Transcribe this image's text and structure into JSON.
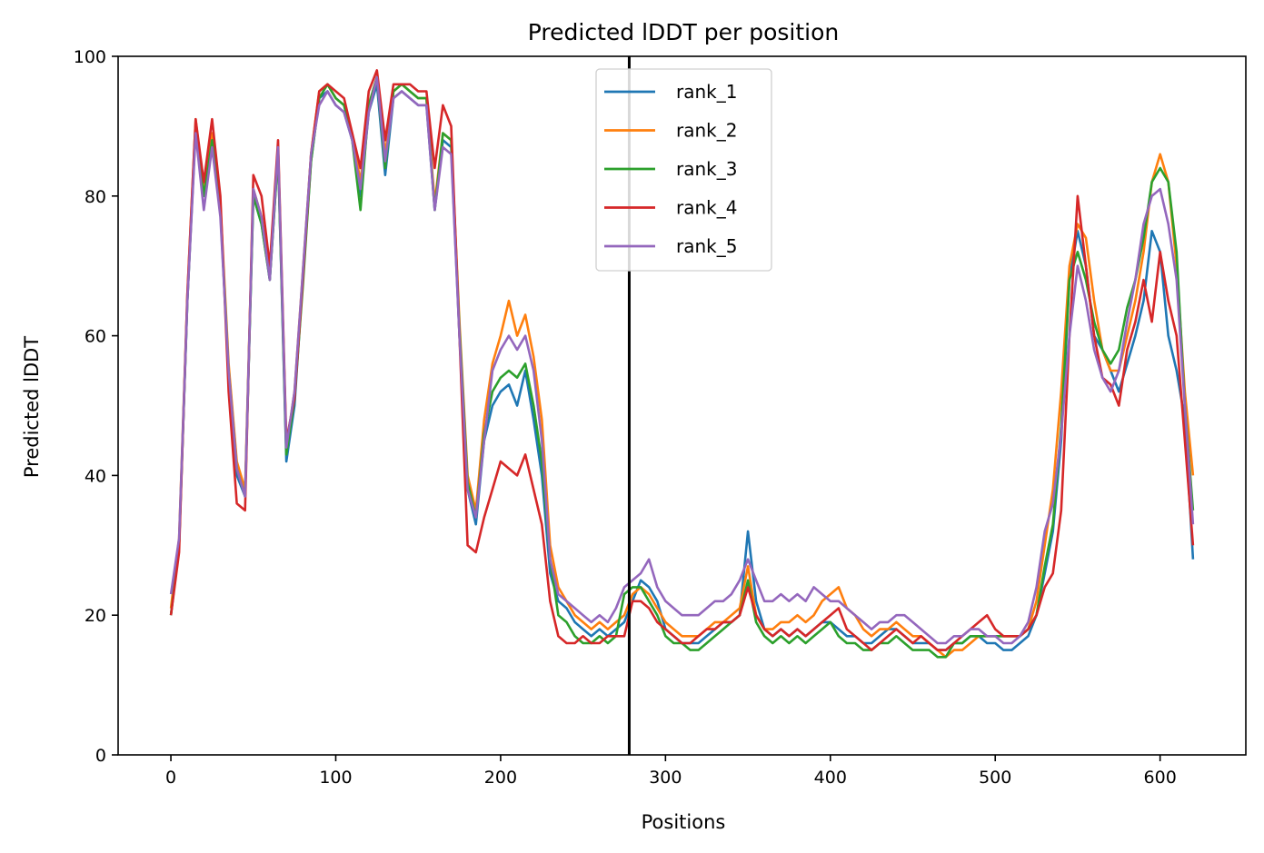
{
  "chart_data": {
    "type": "line",
    "title": "Predicted lDDT per position",
    "xlabel": "Positions",
    "ylabel": "Predicted lDDT",
    "xlim": [
      -32,
      652
    ],
    "ylim": [
      0,
      100
    ],
    "xticks": [
      0,
      100,
      200,
      300,
      400,
      500,
      600
    ],
    "yticks": [
      0,
      20,
      40,
      60,
      80,
      100
    ],
    "grid": false,
    "legend_position": "top-center",
    "vline_x": 278,
    "vline_color": "#000000",
    "series": [
      {
        "name": "rank_1",
        "color": "#1f77b4",
        "x": [
          0,
          5,
          10,
          15,
          20,
          25,
          30,
          35,
          40,
          45,
          50,
          55,
          60,
          65,
          70,
          75,
          80,
          85,
          90,
          95,
          100,
          105,
          110,
          115,
          120,
          125,
          130,
          135,
          140,
          145,
          150,
          155,
          160,
          165,
          170,
          175,
          180,
          185,
          190,
          195,
          200,
          205,
          210,
          215,
          220,
          225,
          230,
          235,
          240,
          245,
          250,
          255,
          260,
          265,
          270,
          275,
          280,
          285,
          290,
          295,
          300,
          305,
          310,
          315,
          320,
          325,
          330,
          335,
          340,
          345,
          350,
          355,
          360,
          365,
          370,
          375,
          380,
          385,
          390,
          395,
          400,
          405,
          410,
          415,
          420,
          425,
          430,
          435,
          440,
          445,
          450,
          455,
          460,
          465,
          470,
          475,
          480,
          485,
          490,
          495,
          500,
          505,
          510,
          515,
          520,
          525,
          530,
          535,
          540,
          545,
          550,
          555,
          560,
          565,
          570,
          575,
          580,
          585,
          590,
          595,
          600,
          605,
          610,
          615,
          620
        ],
        "y": [
          20,
          30,
          65,
          90,
          80,
          88,
          78,
          55,
          40,
          37,
          80,
          76,
          68,
          86,
          42,
          50,
          68,
          85,
          94,
          95,
          93,
          92,
          88,
          80,
          92,
          96,
          83,
          94,
          95,
          94,
          93,
          93,
          78,
          88,
          87,
          60,
          38,
          33,
          45,
          50,
          52,
          53,
          50,
          55,
          48,
          40,
          26,
          22,
          21,
          19,
          18,
          17,
          18,
          17,
          18,
          19,
          22,
          25,
          24,
          22,
          18,
          17,
          16,
          16,
          16,
          17,
          18,
          19,
          19,
          20,
          32,
          22,
          18,
          17,
          18,
          17,
          18,
          17,
          18,
          19,
          19,
          18,
          17,
          17,
          16,
          16,
          17,
          18,
          18,
          17,
          16,
          16,
          16,
          15,
          15,
          16,
          16,
          17,
          17,
          16,
          16,
          15,
          15,
          16,
          17,
          20,
          26,
          32,
          45,
          68,
          75,
          70,
          60,
          58,
          55,
          52,
          56,
          60,
          65,
          75,
          72,
          60,
          55,
          48,
          28
        ]
      },
      {
        "name": "rank_2",
        "color": "#ff7f0e",
        "x": [
          0,
          5,
          10,
          15,
          20,
          25,
          30,
          35,
          40,
          45,
          50,
          55,
          60,
          65,
          70,
          75,
          80,
          85,
          90,
          95,
          100,
          105,
          110,
          115,
          120,
          125,
          130,
          135,
          140,
          145,
          150,
          155,
          160,
          165,
          170,
          175,
          180,
          185,
          190,
          195,
          200,
          205,
          210,
          215,
          220,
          225,
          230,
          235,
          240,
          245,
          250,
          255,
          260,
          265,
          270,
          275,
          280,
          285,
          290,
          295,
          300,
          305,
          310,
          315,
          320,
          325,
          330,
          335,
          340,
          345,
          350,
          355,
          360,
          365,
          370,
          375,
          380,
          385,
          390,
          395,
          400,
          405,
          410,
          415,
          420,
          425,
          430,
          435,
          440,
          445,
          450,
          455,
          460,
          465,
          470,
          475,
          480,
          485,
          490,
          495,
          500,
          505,
          510,
          515,
          520,
          525,
          530,
          535,
          540,
          545,
          550,
          555,
          560,
          565,
          570,
          575,
          580,
          585,
          590,
          595,
          600,
          605,
          610,
          615,
          620
        ],
        "y": [
          21,
          31,
          66,
          91,
          81,
          89,
          79,
          56,
          42,
          38,
          81,
          77,
          69,
          87,
          44,
          52,
          69,
          86,
          95,
          96,
          94,
          93,
          89,
          82,
          93,
          97,
          86,
          95,
          96,
          95,
          94,
          94,
          79,
          89,
          88,
          62,
          40,
          35,
          48,
          56,
          60,
          65,
          60,
          63,
          57,
          48,
          30,
          24,
          22,
          20,
          19,
          18,
          19,
          18,
          19,
          20,
          23,
          24,
          23,
          21,
          19,
          18,
          17,
          17,
          17,
          18,
          19,
          19,
          20,
          21,
          27,
          20,
          18,
          18,
          19,
          19,
          20,
          19,
          20,
          22,
          23,
          24,
          21,
          20,
          18,
          17,
          18,
          18,
          19,
          18,
          17,
          17,
          16,
          15,
          14,
          15,
          15,
          16,
          17,
          17,
          17,
          17,
          17,
          17,
          18,
          22,
          30,
          38,
          52,
          70,
          76,
          74,
          65,
          58,
          55,
          55,
          60,
          65,
          72,
          82,
          86,
          82,
          70,
          52,
          40
        ]
      },
      {
        "name": "rank_3",
        "color": "#2ca02c",
        "x": [
          0,
          5,
          10,
          15,
          20,
          25,
          30,
          35,
          40,
          45,
          50,
          55,
          60,
          65,
          70,
          75,
          80,
          85,
          90,
          95,
          100,
          105,
          110,
          115,
          120,
          125,
          130,
          135,
          140,
          145,
          150,
          155,
          160,
          165,
          170,
          175,
          180,
          185,
          190,
          195,
          200,
          205,
          210,
          215,
          220,
          225,
          230,
          235,
          240,
          245,
          250,
          255,
          260,
          265,
          270,
          275,
          280,
          285,
          290,
          295,
          300,
          305,
          310,
          315,
          320,
          325,
          330,
          335,
          340,
          345,
          350,
          355,
          360,
          365,
          370,
          375,
          380,
          385,
          390,
          395,
          400,
          405,
          410,
          415,
          420,
          425,
          430,
          435,
          440,
          445,
          450,
          455,
          460,
          465,
          470,
          475,
          480,
          485,
          490,
          495,
          500,
          505,
          510,
          515,
          520,
          525,
          530,
          535,
          540,
          545,
          550,
          555,
          560,
          565,
          570,
          575,
          580,
          585,
          590,
          595,
          600,
          605,
          610,
          615,
          620
        ],
        "y": [
          20,
          30,
          65,
          90,
          80,
          88,
          78,
          55,
          41,
          37,
          80,
          76,
          68,
          86,
          43,
          51,
          67,
          85,
          94,
          96,
          94,
          93,
          88,
          78,
          93,
          97,
          84,
          95,
          96,
          95,
          94,
          94,
          78,
          89,
          88,
          61,
          39,
          34,
          46,
          52,
          54,
          55,
          54,
          56,
          50,
          42,
          28,
          20,
          19,
          17,
          16,
          16,
          17,
          16,
          17,
          23,
          24,
          24,
          22,
          20,
          17,
          16,
          16,
          15,
          15,
          16,
          17,
          18,
          19,
          20,
          25,
          19,
          17,
          16,
          17,
          16,
          17,
          16,
          17,
          18,
          19,
          17,
          16,
          16,
          15,
          15,
          16,
          16,
          17,
          16,
          15,
          15,
          15,
          14,
          14,
          16,
          16,
          17,
          17,
          17,
          17,
          17,
          17,
          17,
          18,
          20,
          27,
          33,
          47,
          68,
          72,
          68,
          62,
          58,
          56,
          58,
          64,
          68,
          74,
          82,
          84,
          82,
          72,
          50,
          35
        ]
      },
      {
        "name": "rank_4",
        "color": "#d62728",
        "x": [
          0,
          5,
          10,
          15,
          20,
          25,
          30,
          35,
          40,
          45,
          50,
          55,
          60,
          65,
          70,
          75,
          80,
          85,
          90,
          95,
          100,
          105,
          110,
          115,
          120,
          125,
          130,
          135,
          140,
          145,
          150,
          155,
          160,
          165,
          170,
          175,
          180,
          185,
          190,
          195,
          200,
          205,
          210,
          215,
          220,
          225,
          230,
          235,
          240,
          245,
          250,
          255,
          260,
          265,
          270,
          275,
          280,
          285,
          290,
          295,
          300,
          305,
          310,
          315,
          320,
          325,
          330,
          335,
          340,
          345,
          350,
          355,
          360,
          365,
          370,
          375,
          380,
          385,
          390,
          395,
          400,
          405,
          410,
          415,
          420,
          425,
          430,
          435,
          440,
          445,
          450,
          455,
          460,
          465,
          470,
          475,
          480,
          485,
          490,
          495,
          500,
          505,
          510,
          515,
          520,
          525,
          530,
          535,
          540,
          545,
          550,
          555,
          560,
          565,
          570,
          575,
          580,
          585,
          590,
          595,
          600,
          605,
          610,
          615,
          620
        ],
        "y": [
          20,
          29,
          66,
          91,
          82,
          91,
          80,
          52,
          36,
          35,
          83,
          80,
          70,
          88,
          45,
          51,
          68,
          86,
          95,
          96,
          95,
          94,
          89,
          84,
          95,
          98,
          88,
          96,
          96,
          96,
          95,
          95,
          84,
          93,
          90,
          60,
          30,
          29,
          34,
          38,
          42,
          41,
          40,
          43,
          38,
          33,
          22,
          17,
          16,
          16,
          17,
          16,
          16,
          17,
          17,
          17,
          22,
          22,
          21,
          19,
          18,
          17,
          16,
          16,
          17,
          18,
          18,
          19,
          19,
          20,
          24,
          20,
          18,
          17,
          18,
          17,
          18,
          17,
          18,
          19,
          20,
          21,
          18,
          17,
          16,
          15,
          16,
          17,
          18,
          17,
          16,
          17,
          16,
          15,
          15,
          16,
          17,
          18,
          19,
          20,
          18,
          17,
          17,
          17,
          18,
          20,
          24,
          26,
          35,
          60,
          80,
          70,
          60,
          54,
          53,
          50,
          58,
          62,
          68,
          62,
          72,
          65,
          60,
          45,
          30
        ]
      },
      {
        "name": "rank_5",
        "color": "#9467bd",
        "x": [
          0,
          5,
          10,
          15,
          20,
          25,
          30,
          35,
          40,
          45,
          50,
          55,
          60,
          65,
          70,
          75,
          80,
          85,
          90,
          95,
          100,
          105,
          110,
          115,
          120,
          125,
          130,
          135,
          140,
          145,
          150,
          155,
          160,
          165,
          170,
          175,
          180,
          185,
          190,
          195,
          200,
          205,
          210,
          215,
          220,
          225,
          230,
          235,
          240,
          245,
          250,
          255,
          260,
          265,
          270,
          275,
          280,
          285,
          290,
          295,
          300,
          305,
          310,
          315,
          320,
          325,
          330,
          335,
          340,
          345,
          350,
          355,
          360,
          365,
          370,
          375,
          380,
          385,
          390,
          395,
          400,
          405,
          410,
          415,
          420,
          425,
          430,
          435,
          440,
          445,
          450,
          455,
          460,
          465,
          470,
          475,
          480,
          485,
          490,
          495,
          500,
          505,
          510,
          515,
          520,
          525,
          530,
          535,
          540,
          545,
          550,
          555,
          560,
          565,
          570,
          575,
          580,
          585,
          590,
          595,
          600,
          605,
          610,
          615,
          620
        ],
        "y": [
          23,
          31,
          65,
          89,
          78,
          87,
          77,
          55,
          41,
          37,
          81,
          77,
          68,
          87,
          44,
          52,
          69,
          86,
          93,
          95,
          93,
          92,
          88,
          81,
          92,
          97,
          85,
          94,
          95,
          94,
          93,
          93,
          78,
          87,
          86,
          60,
          38,
          34,
          45,
          55,
          58,
          60,
          58,
          60,
          55,
          45,
          28,
          23,
          22,
          21,
          20,
          19,
          20,
          19,
          21,
          24,
          25,
          26,
          28,
          24,
          22,
          21,
          20,
          20,
          20,
          21,
          22,
          22,
          23,
          25,
          28,
          25,
          22,
          22,
          23,
          22,
          23,
          22,
          24,
          23,
          22,
          22,
          21,
          20,
          19,
          18,
          19,
          19,
          20,
          20,
          19,
          18,
          17,
          16,
          16,
          17,
          17,
          18,
          18,
          17,
          17,
          16,
          16,
          17,
          19,
          24,
          32,
          36,
          46,
          60,
          70,
          65,
          58,
          54,
          52,
          55,
          62,
          68,
          76,
          80,
          81,
          76,
          68,
          50,
          33
        ]
      }
    ]
  }
}
